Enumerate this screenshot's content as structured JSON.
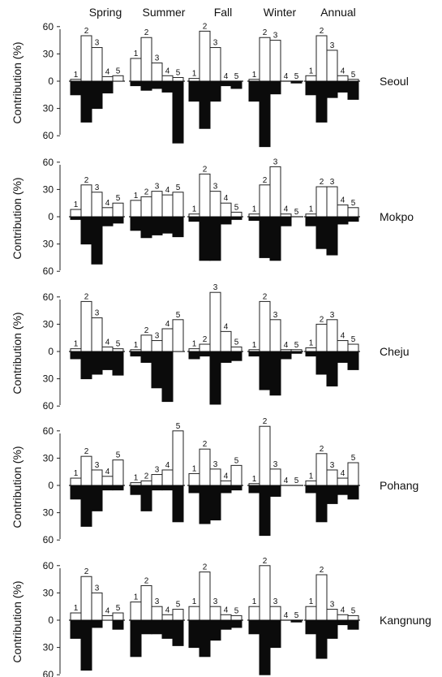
{
  "figure": {
    "season_headers": [
      "Spring",
      "Summer",
      "Fall",
      "Winter",
      "Annual"
    ],
    "y_axis_label": "Contribution (%)",
    "y_tick_labels": [
      "60",
      "30",
      "0",
      "30",
      "60"
    ]
  },
  "chart_data": [
    {
      "type": "bar",
      "station": "Seoul",
      "categories": [
        "1",
        "2",
        "3",
        "4",
        "5"
      ],
      "ylim_up": [
        0,
        60
      ],
      "ylim_down": [
        0,
        60
      ],
      "up_note": "open bars (positive contribution), labelled 1-5",
      "seasons": [
        {
          "name": "Spring",
          "up": [
            2,
            50,
            37,
            5,
            6
          ],
          "down": [
            15,
            45,
            30,
            13,
            0
          ]
        },
        {
          "name": "Summer",
          "up": [
            25,
            48,
            20,
            6,
            4
          ],
          "down": [
            5,
            10,
            8,
            12,
            68
          ]
        },
        {
          "name": "Fall",
          "up": [
            3,
            55,
            37,
            0,
            0
          ],
          "down": [
            22,
            52,
            22,
            5,
            8
          ]
        },
        {
          "name": "Winter",
          "up": [
            2,
            48,
            45,
            0,
            0
          ],
          "down": [
            22,
            72,
            14,
            0,
            2
          ]
        },
        {
          "name": "Annual",
          "up": [
            6,
            50,
            34,
            6,
            2
          ],
          "down": [
            15,
            45,
            18,
            12,
            20
          ]
        }
      ]
    },
    {
      "type": "bar",
      "station": "Mokpo",
      "categories": [
        "1",
        "2",
        "3",
        "4",
        "5"
      ],
      "ylim_up": [
        0,
        60
      ],
      "ylim_down": [
        0,
        60
      ],
      "seasons": [
        {
          "name": "Spring",
          "up": [
            8,
            35,
            27,
            10,
            15
          ],
          "down": [
            3,
            30,
            52,
            10,
            7
          ]
        },
        {
          "name": "Summer",
          "up": [
            18,
            22,
            28,
            24,
            27
          ],
          "down": [
            15,
            23,
            20,
            18,
            22
          ]
        },
        {
          "name": "Fall",
          "up": [
            3,
            47,
            28,
            15,
            5
          ],
          "down": [
            5,
            48,
            48,
            8,
            3
          ]
        },
        {
          "name": "Winter",
          "up": [
            3,
            35,
            55,
            3,
            0
          ],
          "down": [
            4,
            45,
            48,
            10,
            0
          ]
        },
        {
          "name": "Annual",
          "up": [
            3,
            33,
            33,
            13,
            10
          ],
          "down": [
            10,
            35,
            42,
            8,
            5
          ]
        }
      ]
    },
    {
      "type": "bar",
      "station": "Cheju",
      "categories": [
        "1",
        "2",
        "3",
        "4",
        "5"
      ],
      "ylim_up": [
        0,
        60
      ],
      "ylim_down": [
        0,
        60
      ],
      "seasons": [
        {
          "name": "Spring",
          "up": [
            3,
            55,
            37,
            5,
            3
          ],
          "down": [
            8,
            30,
            25,
            20,
            26
          ]
        },
        {
          "name": "Summer",
          "up": [
            2,
            18,
            12,
            25,
            35
          ],
          "down": [
            5,
            12,
            40,
            55,
            0
          ]
        },
        {
          "name": "Fall",
          "up": [
            3,
            8,
            65,
            22,
            5
          ],
          "down": [
            8,
            5,
            58,
            12,
            10
          ]
        },
        {
          "name": "Winter",
          "up": [
            2,
            55,
            35,
            2,
            2
          ],
          "down": [
            5,
            42,
            48,
            8,
            2
          ]
        },
        {
          "name": "Annual",
          "up": [
            4,
            30,
            35,
            12,
            8
          ],
          "down": [
            5,
            25,
            38,
            12,
            20
          ]
        }
      ]
    },
    {
      "type": "bar",
      "station": "Pohang",
      "categories": [
        "1",
        "2",
        "3",
        "4",
        "5"
      ],
      "ylim_up": [
        0,
        60
      ],
      "ylim_down": [
        0,
        60
      ],
      "seasons": [
        {
          "name": "Spring",
          "up": [
            8,
            32,
            17,
            10,
            28
          ],
          "down": [
            15,
            45,
            28,
            5,
            5
          ]
        },
        {
          "name": "Summer",
          "up": [
            3,
            5,
            12,
            17,
            60
          ],
          "down": [
            10,
            28,
            5,
            5,
            40
          ]
        },
        {
          "name": "Fall",
          "up": [
            13,
            40,
            18,
            5,
            22
          ],
          "down": [
            8,
            42,
            38,
            8,
            5
          ]
        },
        {
          "name": "Winter",
          "up": [
            2,
            65,
            18,
            0,
            0
          ],
          "down": [
            8,
            55,
            12,
            0,
            0
          ]
        },
        {
          "name": "Annual",
          "up": [
            5,
            35,
            17,
            8,
            25
          ],
          "down": [
            8,
            40,
            20,
            10,
            15
          ]
        }
      ]
    },
    {
      "type": "bar",
      "station": "Kangnung",
      "categories": [
        "1",
        "2",
        "3",
        "4",
        "5"
      ],
      "ylim_up": [
        0,
        60
      ],
      "ylim_down": [
        0,
        60
      ],
      "seasons": [
        {
          "name": "Spring",
          "up": [
            8,
            48,
            30,
            5,
            8
          ],
          "down": [
            20,
            55,
            8,
            0,
            10
          ]
        },
        {
          "name": "Summer",
          "up": [
            20,
            38,
            15,
            6,
            12
          ],
          "down": [
            40,
            15,
            15,
            20,
            28
          ]
        },
        {
          "name": "Fall",
          "up": [
            15,
            53,
            15,
            6,
            5
          ],
          "down": [
            30,
            40,
            22,
            10,
            8
          ]
        },
        {
          "name": "Winter",
          "up": [
            15,
            60,
            15,
            0,
            0
          ],
          "down": [
            15,
            60,
            30,
            0,
            2
          ]
        },
        {
          "name": "Annual",
          "up": [
            15,
            50,
            12,
            6,
            5
          ],
          "down": [
            15,
            42,
            20,
            5,
            10
          ]
        }
      ]
    }
  ]
}
